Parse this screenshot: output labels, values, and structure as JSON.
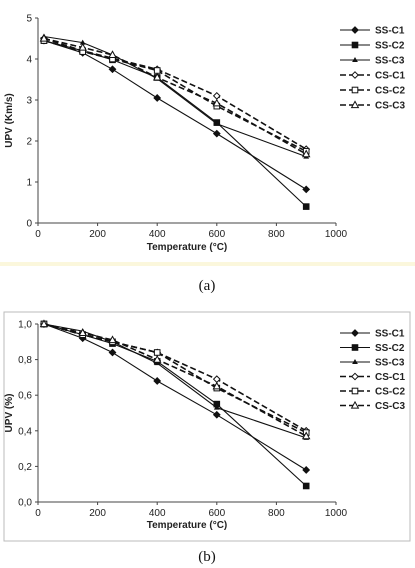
{
  "chart_data": [
    {
      "type": "line",
      "panel_label": "(a)",
      "xlabel": "Temperature (°C)",
      "ylabel": "UPV (Km/s)",
      "xlim": [
        0,
        1000
      ],
      "ylim": [
        0,
        5
      ],
      "x_ticks": [
        "0",
        "200",
        "400",
        "600",
        "800",
        "1000"
      ],
      "y_ticks": [
        "0",
        "1",
        "2",
        "3",
        "4",
        "5"
      ],
      "grid": false,
      "legend_position": "right",
      "series": [
        {
          "name": "SS-C1",
          "marker": "diamond-filled",
          "dashed": false,
          "x": [
            20,
            150,
            250,
            400,
            600,
            900
          ],
          "y": [
            4.45,
            4.15,
            3.75,
            3.05,
            2.18,
            0.82
          ]
        },
        {
          "name": "SS-C2",
          "marker": "square-filled",
          "dashed": false,
          "x": [
            20,
            150,
            250,
            400,
            600,
            900
          ],
          "y": [
            4.45,
            4.2,
            3.98,
            3.55,
            2.45,
            0.4
          ]
        },
        {
          "name": "SS-C3",
          "marker": "triangle-small",
          "dashed": false,
          "x": [
            20,
            150,
            250,
            400,
            600,
            900
          ],
          "y": [
            4.55,
            4.4,
            4.1,
            3.52,
            2.42,
            1.62
          ]
        },
        {
          "name": "CS-C1",
          "marker": "diamond-open",
          "dashed": true,
          "x": [
            20,
            150,
            250,
            400,
            600,
            900
          ],
          "y": [
            4.5,
            4.2,
            4.02,
            3.75,
            3.1,
            1.8
          ]
        },
        {
          "name": "CS-C2",
          "marker": "square-open",
          "dashed": true,
          "x": [
            20,
            150,
            250,
            400,
            600,
            900
          ],
          "y": [
            4.45,
            4.18,
            4.0,
            3.72,
            2.85,
            1.75
          ]
        },
        {
          "name": "CS-C3",
          "marker": "triangle-open",
          "dashed": true,
          "x": [
            20,
            150,
            250,
            400,
            600,
            900
          ],
          "y": [
            4.5,
            4.28,
            4.1,
            3.55,
            2.92,
            1.68
          ]
        }
      ]
    },
    {
      "type": "line",
      "panel_label": "(b)",
      "xlabel": "Temperature (°C)",
      "ylabel": "UPV (%)",
      "xlim": [
        0,
        1000
      ],
      "ylim": [
        0,
        1
      ],
      "x_ticks": [
        "0",
        "200",
        "400",
        "600",
        "800",
        "1000"
      ],
      "y_ticks": [
        "0,0",
        "0,2",
        "0,4",
        "0,6",
        "0,8",
        "1,0"
      ],
      "grid": false,
      "legend_position": "right",
      "series": [
        {
          "name": "SS-C1",
          "marker": "diamond-filled",
          "dashed": false,
          "x": [
            20,
            150,
            250,
            400,
            600,
            900
          ],
          "y": [
            1.0,
            0.92,
            0.84,
            0.68,
            0.49,
            0.18
          ]
        },
        {
          "name": "SS-C2",
          "marker": "square-filled",
          "dashed": false,
          "x": [
            20,
            150,
            250,
            400,
            600,
            900
          ],
          "y": [
            1.0,
            0.94,
            0.89,
            0.79,
            0.55,
            0.09
          ]
        },
        {
          "name": "SS-C3",
          "marker": "triangle-small",
          "dashed": false,
          "x": [
            20,
            150,
            250,
            400,
            600,
            900
          ],
          "y": [
            1.0,
            0.96,
            0.9,
            0.78,
            0.53,
            0.36
          ]
        },
        {
          "name": "CS-C1",
          "marker": "diamond-open",
          "dashed": true,
          "x": [
            20,
            150,
            250,
            400,
            600,
            900
          ],
          "y": [
            1.0,
            0.94,
            0.9,
            0.84,
            0.69,
            0.4
          ]
        },
        {
          "name": "CS-C2",
          "marker": "square-open",
          "dashed": true,
          "x": [
            20,
            150,
            250,
            400,
            600,
            900
          ],
          "y": [
            1.0,
            0.94,
            0.9,
            0.84,
            0.64,
            0.39
          ]
        },
        {
          "name": "CS-C3",
          "marker": "triangle-open",
          "dashed": true,
          "x": [
            20,
            150,
            250,
            400,
            600,
            900
          ],
          "y": [
            1.0,
            0.95,
            0.91,
            0.8,
            0.65,
            0.37
          ]
        }
      ]
    }
  ],
  "captions": [
    "(a)",
    "(b)"
  ]
}
